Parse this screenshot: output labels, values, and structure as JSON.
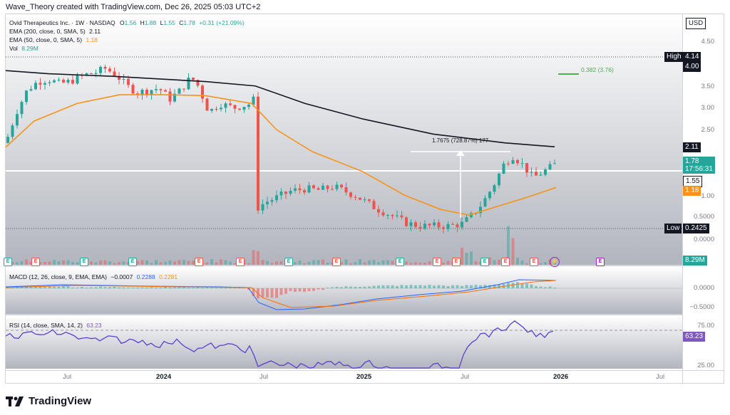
{
  "header": {
    "credit": "Wave_Theory created with TradingView.com, Dec 26, 2025 05:03 UTC+2"
  },
  "legend": {
    "symbol": "Ovid Therapeutics Inc. · 1W · NASDAQ",
    "o_label": "O",
    "o": "1.56",
    "h_label": "H",
    "h": "1.88",
    "l_label": "L",
    "l": "1.55",
    "c_label": "C",
    "c": "1.78",
    "change": "+0.31 (+21.09%)",
    "ema200_label": "EMA (200, close, 0, SMA, 5)",
    "ema200_value": "2.11",
    "ema50_label": "EMA (50, close, 0, SMA, 5)",
    "ema50_value": "1.18",
    "vol_label": "Vol",
    "vol_value": "8.29M"
  },
  "price_axis": {
    "currency": "USD",
    "ticks": [
      "4.50",
      "4.00",
      "3.50",
      "3.00",
      "2.50",
      "1.00",
      "0.5000",
      "0.0000"
    ],
    "high_label": "High",
    "high_value": "4.14",
    "low_label": "Low",
    "low_value": "0.2425",
    "ema200_tag": "2.11",
    "close_tag": "1.78",
    "countdown": "17:56:31",
    "support_tag": "1.55",
    "ema50_tag": "1.18",
    "vol_tag": "8.29M"
  },
  "annotations": {
    "fib": "0.382 (3.76)",
    "measure": "1.7675 (728.87%) 177"
  },
  "macd": {
    "label": "MACD (12, 26, close, 9, EMA, EMA)",
    "v1": "−0.0007",
    "v2": "0.2288",
    "v3": "0.2281",
    "ticks": [
      "0.0000",
      "−0.5000"
    ]
  },
  "rsi": {
    "label": "RSI (14, close, SMA, 14, 2)",
    "value_shown": "63.23",
    "tag": "63.23",
    "ticks": [
      "75.00",
      "25.00"
    ]
  },
  "time_axis": [
    "Jul",
    "2024",
    "Jul",
    "2025",
    "Jul",
    "2026",
    "Jul"
  ],
  "events": [
    "E",
    "E",
    "E",
    "E",
    "E",
    "E",
    "E",
    "E",
    "E",
    "E",
    "E",
    "E",
    "E",
    "E",
    "E",
    "E"
  ],
  "brand": {
    "name": "TradingView"
  },
  "colors": {
    "up": "#26a69a",
    "down": "#ef5350",
    "ema200": "#131722",
    "ema50": "#f7931a",
    "rsi": "#7e57c2",
    "macd": "#2962ff",
    "signal": "#ff6d00"
  }
}
